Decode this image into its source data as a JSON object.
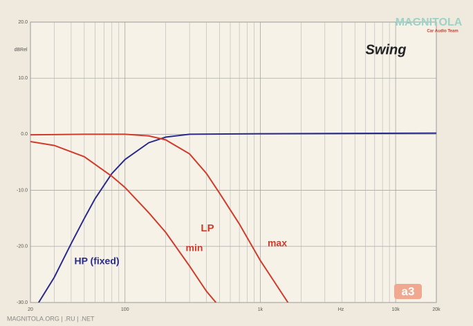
{
  "chart_data": {
    "type": "line",
    "title": "Swing",
    "y_label": "dBRel",
    "x_label": "Hz",
    "log_x": true,
    "grid": true,
    "xlim": [
      20,
      20000
    ],
    "ylim": [
      -30,
      20
    ],
    "xticks": [
      20,
      100,
      {
        "value": 1000,
        "label": "1k"
      },
      {
        "value": 10000,
        "label": "10k"
      },
      {
        "value": 20000,
        "label": "20k"
      }
    ],
    "minor_xticks": [
      30,
      40,
      50,
      60,
      70,
      80,
      90,
      200,
      300,
      400,
      500,
      600,
      700,
      800,
      900,
      2000,
      3000,
      4000,
      5000,
      6000,
      7000,
      8000,
      9000
    ],
    "yticks": [
      {
        "value": 20,
        "label": "20.0"
      },
      {
        "value": 10,
        "label": "10.0"
      },
      {
        "value": 0,
        "label": "0.0"
      },
      {
        "value": -10,
        "label": "-10.0"
      },
      {
        "value": -20,
        "label": "-20.0"
      },
      {
        "value": -30,
        "label": "-30.0"
      }
    ],
    "series": [
      {
        "name": "HP (fixed)",
        "color": "#2a2a8c",
        "x": [
          23,
          30,
          40,
          50,
          60,
          80,
          100,
          150,
          200,
          300,
          1000,
          20000
        ],
        "values": [
          -30,
          -25.5,
          -19.5,
          -15,
          -11.5,
          -7,
          -4.5,
          -1.5,
          -0.5,
          0,
          0.1,
          0.2
        ]
      },
      {
        "name": "min",
        "color": "#d23a2a",
        "x": [
          20,
          30,
          50,
          80,
          100,
          150,
          200,
          300,
          400,
          470
        ],
        "values": [
          -1.3,
          -2,
          -4,
          -7.5,
          -9.5,
          -14,
          -17.5,
          -23.5,
          -28,
          -30
        ]
      },
      {
        "name": "max",
        "color": "#d23a2a",
        "x": [
          20,
          50,
          100,
          150,
          200,
          300,
          400,
          500,
          700,
          1000,
          1600
        ],
        "values": [
          -0.1,
          0,
          0,
          -0.3,
          -1,
          -3.5,
          -7,
          -10.5,
          -16,
          -22.5,
          -30
        ]
      }
    ],
    "annotations": [
      "LP"
    ],
    "watermark": "MAGNITOLA",
    "watermark_sub": "Car Audio Team",
    "footer": "MAGNITOLA.ORG | .RU | .NET",
    "logo": "a3"
  }
}
